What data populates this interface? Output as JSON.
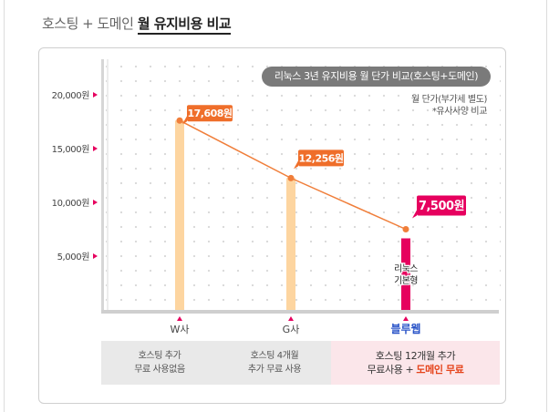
{
  "page_title": {
    "prefix": "호스팅 + 도메인",
    "emphasis": "월 유지비용 비교"
  },
  "chart_data": {
    "type": "bar",
    "title": "리눅스 3년 유지비용 월 단가 비교(호스팅+도메인)",
    "notes": [
      "월 단가(부가세 별도)",
      "*유사사양 비교"
    ],
    "categories": [
      "W사",
      "G사",
      "블루웹"
    ],
    "values": [
      17608,
      12256,
      7500
    ],
    "value_labels": [
      "17,608원",
      "12,256원",
      "7,500원"
    ],
    "y_ticks": [
      {
        "value": 20000,
        "label": "20,000원"
      },
      {
        "value": 15000,
        "label": "15,000원"
      },
      {
        "value": 10000,
        "label": "10,000원"
      },
      {
        "value": 5000,
        "label": "5,000원"
      }
    ],
    "ylim": [
      0,
      22000
    ],
    "bar_inner_label": "리눅스\n기본형",
    "overlay": "line",
    "colors": {
      "bar": "#fdd5a0",
      "highlight_bar": "#e6005e",
      "line": "#f07e3a",
      "label_box": "#ef6e2a",
      "highlight_label_box": "#e6005e",
      "tick_marker": "#e6005e",
      "highlight_category": "#2b55c8"
    }
  },
  "comparison": [
    {
      "text": "호스팅 추가\n무료 사용없음"
    },
    {
      "text": "호스팅 4개월\n추가 무료 사용"
    },
    {
      "line1": "호스팅 12개월 추가",
      "line2_prefix": "무료사용 + ",
      "line2_highlight": "도메인 무료"
    }
  ]
}
